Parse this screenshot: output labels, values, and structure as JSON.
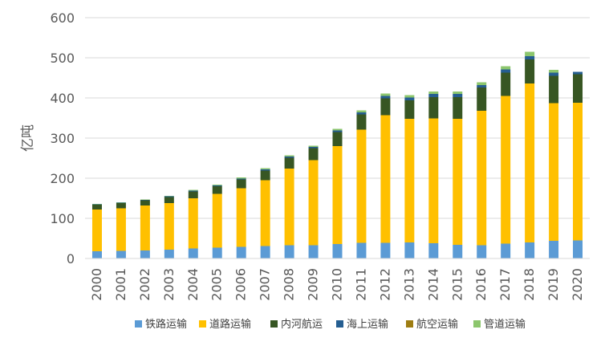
{
  "chart_data": {
    "type": "bar",
    "stacked": true,
    "categories": [
      "2000",
      "2001",
      "2002",
      "2003",
      "2004",
      "2005",
      "2006",
      "2007",
      "2008",
      "2009",
      "2010",
      "2011",
      "2012",
      "2013",
      "2014",
      "2015",
      "2016",
      "2017",
      "2018",
      "2019",
      "2020"
    ],
    "ylabel": "亿吨",
    "ylim": [
      0,
      600
    ],
    "yticks": [
      0,
      100,
      200,
      300,
      400,
      500,
      600
    ],
    "grid": true,
    "legend_position": "bottom",
    "series": [
      {
        "name": "铁路运输",
        "color": "#5b9bd5",
        "values": [
          18,
          19,
          20,
          22,
          25,
          27,
          29,
          31,
          33,
          33,
          36,
          39,
          39,
          40,
          38,
          34,
          33,
          37,
          40,
          44,
          45
        ]
      },
      {
        "name": "道路运输",
        "color": "#ffc000",
        "values": [
          104,
          106,
          112,
          116,
          125,
          134,
          146,
          164,
          191,
          212,
          244,
          282,
          318,
          308,
          311,
          314,
          335,
          368,
          396,
          343,
          343
        ]
      },
      {
        "name": "内河航运",
        "color": "#375623",
        "values": [
          12,
          13,
          13,
          15,
          17,
          19,
          22,
          24,
          27,
          30,
          35,
          38,
          42,
          46,
          53,
          54,
          58,
          58,
          60,
          68,
          71
        ]
      },
      {
        "name": "海上运输",
        "color": "#255e91",
        "values": [
          1,
          1,
          1,
          2,
          2,
          2,
          2,
          3,
          3,
          3,
          4,
          5,
          6,
          7,
          8,
          8,
          6,
          8,
          8,
          8,
          6
        ]
      },
      {
        "name": "航空运输",
        "color": "#9e7d12",
        "values": [
          0,
          0,
          0,
          0,
          0,
          0,
          0,
          0,
          0,
          0,
          0,
          0,
          0,
          0,
          0,
          0,
          0,
          0,
          0,
          0,
          0
        ]
      },
      {
        "name": "管道运输",
        "color": "#8cc66d",
        "values": [
          1,
          1,
          1,
          1,
          2,
          2,
          3,
          3,
          3,
          3,
          4,
          5,
          6,
          6,
          6,
          6,
          7,
          8,
          11,
          7,
          0
        ]
      }
    ]
  }
}
